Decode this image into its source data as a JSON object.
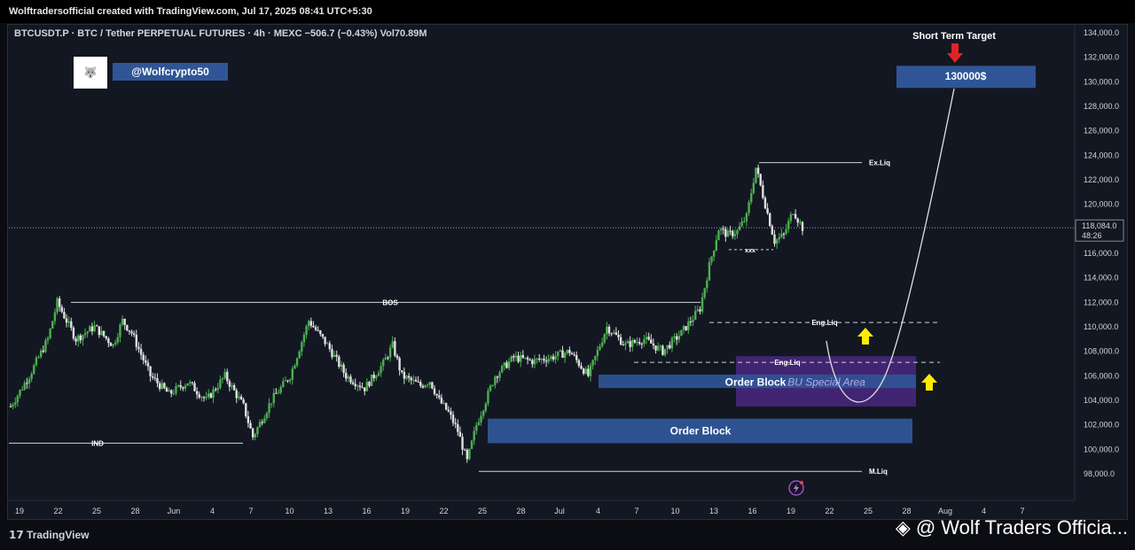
{
  "header": {
    "attribution": "Wolftradersofficial created with TradingView.com, Jul 17, 2025 08:41 UTC+5:30",
    "symbol_line": "BTCUSDT.P · BTC / Tether PERPETUAL FUTURES · 4h · MEXC  −506.7 (−0.43%)  Vol70.89M"
  },
  "brand": {
    "handle": "@Wolfcrypto50"
  },
  "footer": {
    "tradingview": "TradingView",
    "watermark": "@ Wolf Traders Officia..."
  },
  "colors": {
    "up": "#26a69a",
    "down": "#ef5350",
    "background": "#131722",
    "zone_blue": "#2f5597",
    "zone_purple": "#5b2d9e",
    "arrow_yellow": "#ffeb00",
    "arrow_red": "#e02424"
  },
  "chart_data": {
    "type": "candlestick",
    "symbol": "BTCUSDT.P",
    "timeframe": "4h",
    "y_ticks": [
      "134,000.0",
      "132,000.0",
      "130,000.0",
      "128,000.0",
      "126,000.0",
      "124,000.0",
      "122,000.0",
      "120,000.0",
      "118,000.0",
      "116,000.0",
      "114,000.0",
      "112,000.0",
      "110,000.0",
      "108,000.0",
      "106,000.0",
      "104,000.0",
      "102,000.0",
      "100,000.0",
      "98,000.0"
    ],
    "ylim": [
      97000,
      135000
    ],
    "x_ticks": [
      "19",
      "22",
      "25",
      "28",
      "Jun",
      "4",
      "7",
      "10",
      "13",
      "16",
      "19",
      "22",
      "25",
      "28",
      "Jul",
      "4",
      "7",
      "10",
      "13",
      "16",
      "19",
      "22",
      "25",
      "28",
      "Aug",
      "4",
      "7"
    ],
    "price_path": [
      {
        "x": 0,
        "y": 103500
      },
      {
        "x": 2,
        "y": 106000
      },
      {
        "x": 4,
        "y": 109000
      },
      {
        "x": 5,
        "y": 112000
      },
      {
        "x": 7,
        "y": 109000
      },
      {
        "x": 9,
        "y": 110000
      },
      {
        "x": 11,
        "y": 108500
      },
      {
        "x": 12,
        "y": 110500
      },
      {
        "x": 13,
        "y": 109500
      },
      {
        "x": 15,
        "y": 106000
      },
      {
        "x": 17,
        "y": 104500
      },
      {
        "x": 19,
        "y": 105500
      },
      {
        "x": 21,
        "y": 104000
      },
      {
        "x": 23,
        "y": 106000
      },
      {
        "x": 25,
        "y": 103500
      },
      {
        "x": 26,
        "y": 101000
      },
      {
        "x": 28,
        "y": 104000
      },
      {
        "x": 30,
        "y": 106000
      },
      {
        "x": 32,
        "y": 110500
      },
      {
        "x": 34,
        "y": 108500
      },
      {
        "x": 36,
        "y": 106000
      },
      {
        "x": 38,
        "y": 105000
      },
      {
        "x": 40,
        "y": 107000
      },
      {
        "x": 41,
        "y": 108500
      },
      {
        "x": 42,
        "y": 106000
      },
      {
        "x": 44,
        "y": 105200
      },
      {
        "x": 45,
        "y": 105600
      },
      {
        "x": 46,
        "y": 104000
      },
      {
        "x": 47,
        "y": 103000
      },
      {
        "x": 48,
        "y": 101500
      },
      {
        "x": 49,
        "y": 99000
      },
      {
        "x": 50,
        "y": 102000
      },
      {
        "x": 52,
        "y": 106000
      },
      {
        "x": 54,
        "y": 107500
      },
      {
        "x": 56,
        "y": 107200
      },
      {
        "x": 58,
        "y": 107500
      },
      {
        "x": 60,
        "y": 108000
      },
      {
        "x": 61,
        "y": 107000
      },
      {
        "x": 62,
        "y": 106000
      },
      {
        "x": 63,
        "y": 108000
      },
      {
        "x": 64,
        "y": 110000
      },
      {
        "x": 66,
        "y": 108500
      },
      {
        "x": 68,
        "y": 109000
      },
      {
        "x": 70,
        "y": 108000
      },
      {
        "x": 72,
        "y": 109500
      },
      {
        "x": 73,
        "y": 110500
      },
      {
        "x": 74,
        "y": 111500
      },
      {
        "x": 75,
        "y": 115000
      },
      {
        "x": 76,
        "y": 118000
      },
      {
        "x": 77,
        "y": 117500
      },
      {
        "x": 78,
        "y": 117800
      },
      {
        "x": 79,
        "y": 119000
      },
      {
        "x": 80,
        "y": 123000
      },
      {
        "x": 81,
        "y": 120000
      },
      {
        "x": 82,
        "y": 117000
      },
      {
        "x": 83,
        "y": 117500
      },
      {
        "x": 84,
        "y": 119500
      },
      {
        "x": 85,
        "y": 118084
      }
    ],
    "last_price_label": "118,084.0",
    "countdown": "48:26",
    "annotations": {
      "short_term_title": "Short Term Target",
      "target_label": "130000$",
      "ex_liq": "Ex.Liq",
      "xxx": "xxx",
      "bos": "BOS",
      "eng_liq_upper": "Eng.Liq",
      "eng_liq_lower": "Eng.Liq",
      "order_block_upper": "Order Block",
      "special_area": "BU Special Area",
      "order_block_lower": "Order Block",
      "ind": "IND",
      "m_liq": "M.Liq"
    },
    "levels": {
      "ex_liq": 123400,
      "bos": 112000,
      "eng_liq_upper": 110350,
      "eng_liq_lower": 107100,
      "m_liq": 98200,
      "ind": 100500,
      "xxx": 116300,
      "target": 130000,
      "order_block_upper": [
        105000,
        106100
      ],
      "special_area": [
        103500,
        107600
      ],
      "order_block_lower": [
        100500,
        102500
      ]
    }
  }
}
